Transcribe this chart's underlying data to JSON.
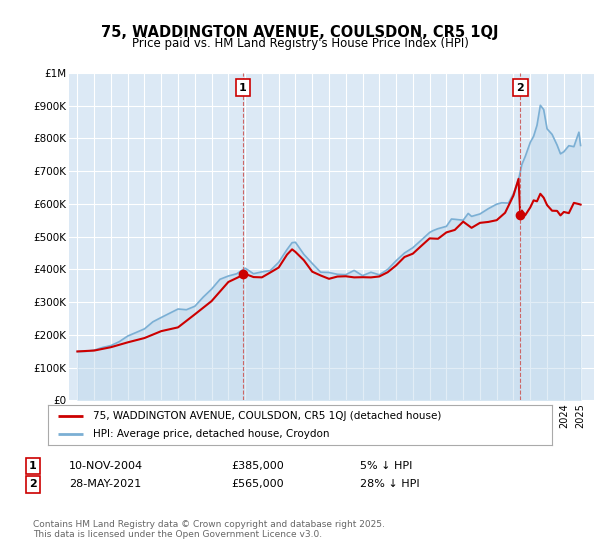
{
  "title": "75, WADDINGTON AVENUE, COULSDON, CR5 1QJ",
  "subtitle": "Price paid vs. HM Land Registry's House Price Index (HPI)",
  "legend_line1": "75, WADDINGTON AVENUE, COULSDON, CR5 1QJ (detached house)",
  "legend_line2": "HPI: Average price, detached house, Croydon",
  "annotation1_date": "10-NOV-2004",
  "annotation1_price": "£385,000",
  "annotation1_hpi": "5% ↓ HPI",
  "annotation2_date": "28-MAY-2021",
  "annotation2_price": "£565,000",
  "annotation2_hpi": "28% ↓ HPI",
  "footer": "Contains HM Land Registry data © Crown copyright and database right 2025.\nThis data is licensed under the Open Government Licence v3.0.",
  "bg_color": "#ffffff",
  "plot_bg_color": "#dce9f5",
  "grid_color": "#ffffff",
  "hpi_color": "#7bafd4",
  "hpi_fill_color": "#b8d4ea",
  "price_color": "#cc0000",
  "dashed_color": "#cc6666",
  "ylim": [
    0,
    1000000
  ],
  "yticks": [
    0,
    100000,
    200000,
    300000,
    400000,
    500000,
    600000,
    700000,
    800000,
    900000,
    1000000
  ],
  "ytick_labels": [
    "£0",
    "£100K",
    "£200K",
    "£300K",
    "£400K",
    "£500K",
    "£600K",
    "£700K",
    "£800K",
    "£900K",
    "£1M"
  ],
  "sale1_x": 2004.87,
  "sale1_y": 385000,
  "sale2_x": 2021.41,
  "sale2_y": 565000,
  "xmin": 1994.5,
  "xmax": 2025.8
}
